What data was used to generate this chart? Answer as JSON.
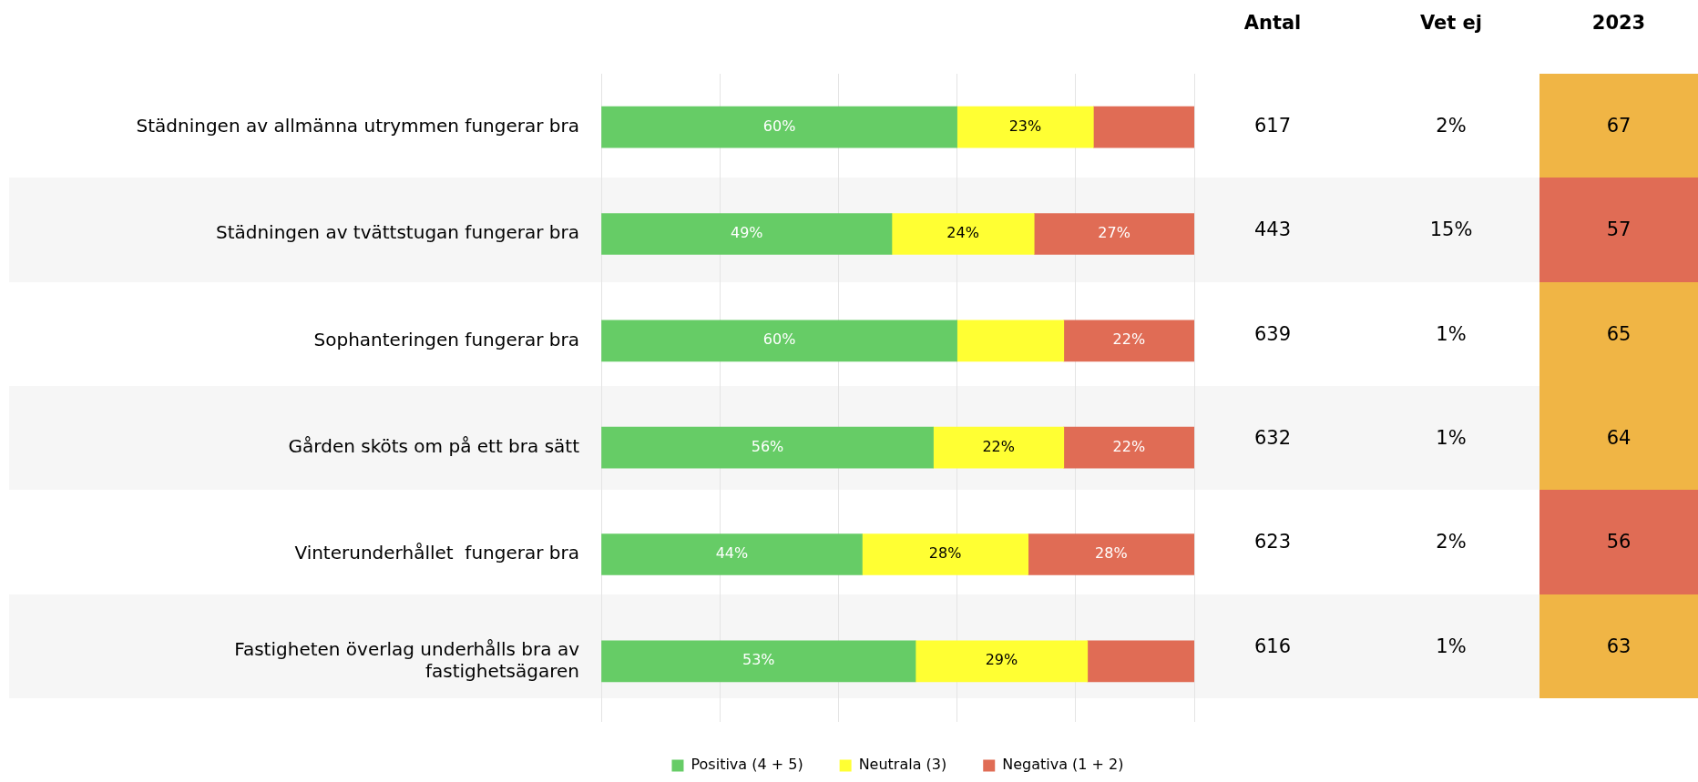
{
  "chart_data": [
    {
      "type": "bar",
      "orientation": "horizontal",
      "stacked": true,
      "categories": [
        "Städningen av allmänna utrymmen fungerar bra",
        "Städningen av tvättstugan fungerar bra",
        "Sophanteringen fungerar bra",
        "Gården sköts om på ett bra sätt",
        "Vinterunderhållet  fungerar bra",
        "Fastigheten överlag underhålls bra av fastighetsägaren"
      ],
      "series": [
        {
          "name": "Positiva (4 + 5)",
          "color": "#66cc66",
          "values": [
            60,
            49,
            60,
            56,
            44,
            53
          ],
          "value_labels": [
            "60%",
            "49%",
            "60%",
            "56%",
            "44%",
            "53%"
          ]
        },
        {
          "name": "Neutrala (3)",
          "color": "#ffff33",
          "values": [
            23,
            24,
            18,
            22,
            28,
            29
          ],
          "value_labels": [
            "23%",
            "24%",
            null,
            "22%",
            "28%",
            "29%"
          ]
        },
        {
          "name": "Negativa (1 + 2)",
          "color": "#e06c55",
          "values": [
            17,
            27,
            22,
            22,
            28,
            18
          ],
          "value_labels": [
            null,
            "27%",
            "22%",
            "22%",
            "28%",
            null
          ]
        }
      ],
      "xlim": [
        0,
        100
      ],
      "xticks": [
        0,
        20,
        40,
        60,
        80,
        100
      ],
      "tick_labels": "y",
      "grid": "x",
      "legend": "bottom"
    },
    {
      "type": "heatmap",
      "categories": [
        "Antal",
        "Vet ej",
        "2023"
      ],
      "cells": [
        [
          617,
          2,
          67
        ],
        [
          443,
          15,
          57
        ],
        [
          639,
          1,
          65
        ],
        [
          632,
          1,
          64
        ],
        [
          623,
          2,
          56
        ],
        [
          616,
          1,
          63
        ]
      ],
      "cell_labels": [
        [
          "617",
          "2%",
          "67"
        ],
        [
          "443",
          "15%",
          "57"
        ],
        [
          "639",
          "1%",
          "65"
        ],
        [
          "632",
          "1%",
          "64"
        ],
        [
          "623",
          "2%",
          "56"
        ],
        [
          "616",
          "1%",
          "63"
        ]
      ],
      "colors": [
        [
          null,
          null,
          "#f0b545"
        ],
        [
          null,
          null,
          "#e06c55"
        ],
        [
          null,
          null,
          "#f0b545"
        ],
        [
          null,
          null,
          "#f0b545"
        ],
        [
          null,
          null,
          "#e06c55"
        ],
        [
          null,
          null,
          "#f0b545"
        ]
      ],
      "y_categories": [
        null,
        null,
        null,
        null,
        null,
        null
      ],
      "tick_labels": "x"
    }
  ]
}
